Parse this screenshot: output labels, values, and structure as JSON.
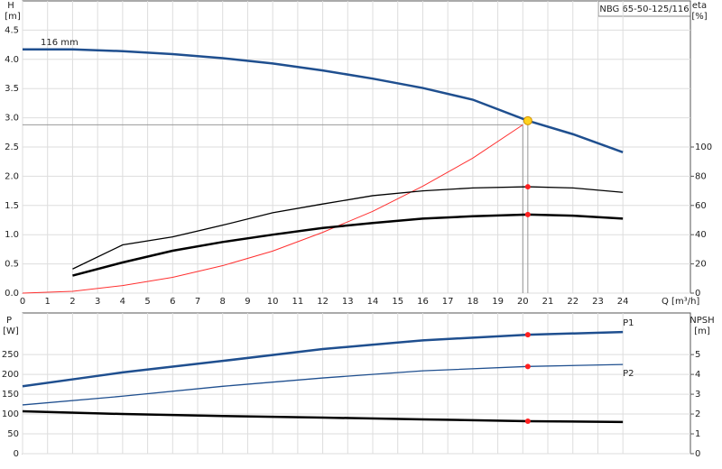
{
  "chart_data": [
    {
      "type": "line",
      "title": "NBG 65-50-125/116",
      "y_label": "H",
      "y_unit": "[m]",
      "y2_label": "eta",
      "y2_unit": "[%]",
      "x_label": "Q [m³/h]",
      "xlim": [
        0,
        26.7
      ],
      "xticks": [
        0,
        1,
        2,
        3,
        4,
        5,
        6,
        7,
        8,
        9,
        10,
        11,
        12,
        13,
        14,
        15,
        16,
        17,
        18,
        19,
        20,
        21,
        22,
        23,
        24
      ],
      "ylim": [
        0,
        5
      ],
      "yticks": [
        {
          "value": 0,
          "label": "0.0"
        },
        0.5,
        {
          "value": 1,
          "label": "1.0"
        },
        1.5,
        {
          "value": 2,
          "label": "2.0"
        },
        2.5,
        {
          "value": 3,
          "label": "3.0"
        },
        3.5,
        {
          "value": 4,
          "label": "4.0"
        },
        4.5
      ],
      "y2lim": [
        0,
        200
      ],
      "y2ticks": [
        0,
        20,
        40,
        60,
        80,
        100
      ],
      "grid": true,
      "duty_point": {
        "x": 20.2,
        "y": 2.95
      },
      "series": [
        {
          "name": "116 mm",
          "color": "#1f4f8f",
          "width": 2.5,
          "x": [
            0,
            2,
            4,
            6,
            8,
            10,
            12,
            14,
            16,
            18,
            20.2,
            22,
            24
          ],
          "values": [
            4.17,
            4.17,
            4.14,
            4.09,
            4.02,
            3.93,
            3.81,
            3.67,
            3.51,
            3.31,
            2.95,
            2.72,
            2.41
          ]
        },
        {
          "color": "#ff3030",
          "width": 1,
          "x": [
            0,
            2,
            4,
            6,
            8,
            10,
            12,
            14,
            16,
            18,
            20
          ],
          "values": [
            0,
            0.03,
            0.13,
            0.27,
            0.47,
            0.72,
            1.04,
            1.4,
            1.83,
            2.31,
            2.88
          ]
        },
        {
          "color": "#000000",
          "width": 1.3,
          "axis": "y2",
          "x": [
            2,
            4,
            6,
            8,
            10,
            12,
            14,
            16,
            18,
            20.2,
            22,
            24
          ],
          "values": [
            16.5,
            33,
            38.5,
            46.5,
            55,
            61,
            66.7,
            70,
            72,
            72.8,
            72,
            69
          ]
        },
        {
          "color": "#000000",
          "width": 2.5,
          "axis": "y2",
          "x": [
            2,
            4,
            6,
            8,
            10,
            12,
            14,
            16,
            18,
            20.2,
            22,
            24
          ],
          "values": [
            12,
            21,
            29,
            35,
            40,
            44.6,
            48,
            51,
            52.6,
            53.8,
            53,
            51
          ]
        }
      ]
    },
    {
      "type": "line",
      "y_label": "P",
      "y_unit": "[W]",
      "y2_label": "NPSH",
      "y2_unit": "[m]",
      "xlim": [
        0,
        26.7
      ],
      "ylim": [
        0,
        355
      ],
      "yticks": [
        0,
        50,
        100,
        150,
        200,
        250
      ],
      "y2lim": [
        0,
        7.1
      ],
      "y2ticks": [
        0,
        1,
        2,
        3,
        4,
        5
      ],
      "grid": true,
      "duty_point": {
        "x": 20.2
      },
      "series": [
        {
          "name": "P1",
          "color": "#1f4f8f",
          "width": 2.5,
          "x": [
            0,
            2.4,
            4,
            8,
            12,
            16,
            20.2,
            24
          ],
          "values": [
            170,
            191,
            205,
            234,
            264,
            286,
            300,
            307
          ]
        },
        {
          "name": "P2",
          "color": "#1f4f8f",
          "width": 1.3,
          "x": [
            0,
            4,
            8,
            12,
            16,
            20.2,
            24
          ],
          "values": [
            123,
            145,
            170,
            191,
            209,
            220,
            225
          ]
        },
        {
          "color": "#000000",
          "width": 2.5,
          "axis": "y2",
          "x": [
            0,
            4,
            8,
            12,
            16,
            20.2,
            24
          ],
          "values": [
            2.14,
            2.0,
            1.9,
            1.82,
            1.73,
            1.64,
            1.6
          ]
        }
      ]
    }
  ]
}
